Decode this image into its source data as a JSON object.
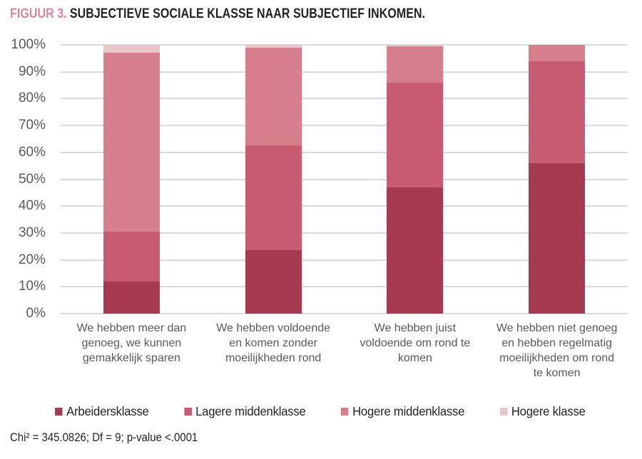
{
  "title": {
    "prefix": "FIGUUR 3.",
    "text": "SUBJECTIEVE SOCIALE KLASSE NAAR SUBJECTIEF INKOMEN."
  },
  "footnote": "Chi² = 345.0826; Df = 9; p-value <.0001",
  "colors": {
    "title_prefix": "#e08497",
    "title_text": "#231f20",
    "axis_text": "#58595b",
    "gridline": "#d9d9d9",
    "background": "#ffffff"
  },
  "chart_data": {
    "type": "bar",
    "stacked": true,
    "unit": "percent",
    "title": "FIGUUR 3. SUBJECTIEVE SOCIALE KLASSE NAAR SUBJECTIEF INKOMEN.",
    "xlabel": "",
    "ylabel": "",
    "ylim": [
      0,
      100
    ],
    "grid": true,
    "legend_position": "bottom",
    "y_ticks": [
      "0%",
      "10%",
      "20%",
      "30%",
      "40%",
      "50%",
      "60%",
      "70%",
      "80%",
      "90%",
      "100%"
    ],
    "categories": [
      "We hebben meer dan genoeg, we kunnen gemakkelijk sparen",
      "We hebben voldoende en komen zonder moeilijkheden rond",
      "We hebben juist voldoende om rond te komen",
      "We hebben niet genoeg en hebben regelmatig moeilijkheden om rond te komen"
    ],
    "category_lines": [
      [
        "We hebben meer dan",
        "genoeg, we kunnen",
        "gemakkelijk sparen"
      ],
      [
        "We hebben voldoende",
        "en komen zonder",
        "moeilijkheden rond"
      ],
      [
        "We hebben juist",
        "voldoende om rond te",
        "komen"
      ],
      [
        "We hebben niet genoeg",
        "en hebben regelmatig",
        "moeilijkheden om rond",
        "te komen"
      ]
    ],
    "series": [
      {
        "name": "Arbeidersklasse",
        "color": "#a53a50",
        "values": [
          12,
          23.5,
          47,
          56
        ]
      },
      {
        "name": "Lagere middenklasse",
        "color": "#c65b72",
        "values": [
          18.5,
          39,
          39,
          38
        ]
      },
      {
        "name": "Hogere middenklasse",
        "color": "#d87f8e",
        "values": [
          66.5,
          36.5,
          13.5,
          6
        ]
      },
      {
        "name": "Hogere klasse",
        "color": "#e9c6ca",
        "values": [
          3,
          1,
          0.5,
          0
        ]
      }
    ]
  }
}
